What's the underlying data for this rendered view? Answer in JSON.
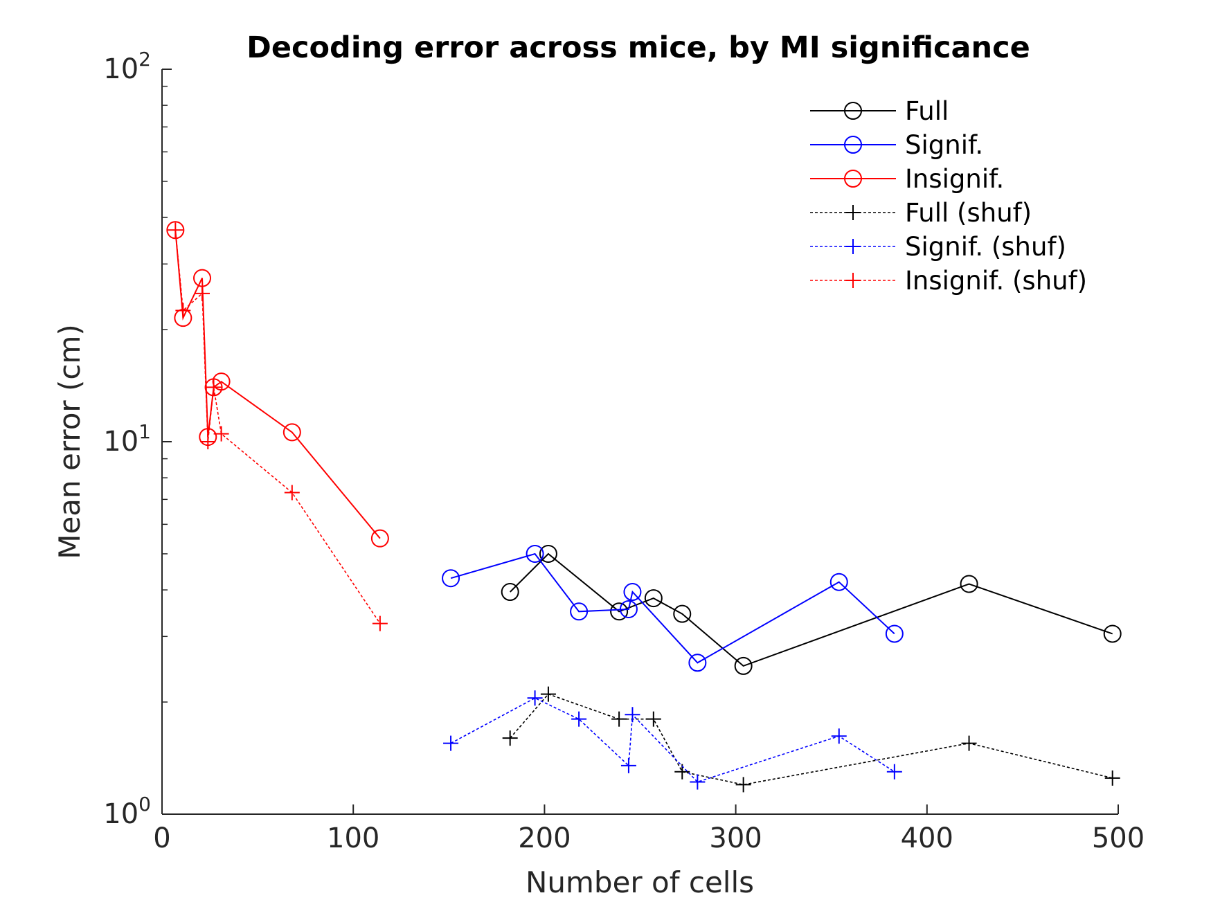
{
  "chart_data": {
    "type": "line",
    "title": "Decoding error across mice, by MI significance",
    "xlabel": "Number of cells",
    "ylabel": "Mean error (cm)",
    "xlim": [
      0,
      500
    ],
    "ylim": [
      1,
      100
    ],
    "yscale": "log",
    "grid": false,
    "legend_position": "top-right",
    "x_ticks": [
      {
        "value": 0,
        "label": "0"
      },
      {
        "value": 100,
        "label": "100"
      },
      {
        "value": 200,
        "label": "200"
      },
      {
        "value": 300,
        "label": "300"
      },
      {
        "value": 400,
        "label": "400"
      },
      {
        "value": 500,
        "label": "500"
      }
    ],
    "y_ticks": [
      {
        "value": 1,
        "base": "10",
        "exp": "0"
      },
      {
        "value": 10,
        "base": "10",
        "exp": "1"
      },
      {
        "value": 100,
        "base": "10",
        "exp": "2"
      }
    ],
    "series": [
      {
        "name": "Full",
        "color": "#000000",
        "marker": "circle",
        "line": "solid",
        "points": [
          [
            182,
            3.95
          ],
          [
            202,
            5.0
          ],
          [
            239,
            3.5
          ],
          [
            257,
            3.8
          ],
          [
            272,
            3.45
          ],
          [
            304,
            2.5
          ],
          [
            422,
            4.15
          ],
          [
            497,
            3.05
          ]
        ]
      },
      {
        "name": "Signif.",
        "color": "#0000ff",
        "marker": "circle",
        "line": "solid",
        "points": [
          [
            151,
            4.3
          ],
          [
            195,
            5.0
          ],
          [
            218,
            3.5
          ],
          [
            244,
            3.55
          ],
          [
            246,
            3.95
          ],
          [
            280,
            2.55
          ],
          [
            354,
            4.2
          ],
          [
            383,
            3.05
          ]
        ]
      },
      {
        "name": "Insignif.",
        "color": "#ff0000",
        "marker": "circle",
        "line": "solid",
        "points": [
          [
            7,
            37.0
          ],
          [
            11,
            21.5
          ],
          [
            21,
            27.5
          ],
          [
            24,
            10.3
          ],
          [
            27,
            14.0
          ],
          [
            31,
            14.5
          ],
          [
            68,
            10.6
          ],
          [
            114,
            5.5
          ]
        ]
      },
      {
        "name": "Full (shuf)",
        "color": "#000000",
        "marker": "plus",
        "line": "dashed",
        "points": [
          [
            182,
            1.6
          ],
          [
            202,
            2.1
          ],
          [
            239,
            1.8
          ],
          [
            257,
            1.8
          ],
          [
            272,
            1.3
          ],
          [
            304,
            1.2
          ],
          [
            422,
            1.55
          ],
          [
            497,
            1.25
          ]
        ]
      },
      {
        "name": "Signif. (shuf)",
        "color": "#0000ff",
        "marker": "plus",
        "line": "dashed",
        "points": [
          [
            151,
            1.55
          ],
          [
            195,
            2.05
          ],
          [
            218,
            1.8
          ],
          [
            244,
            1.35
          ],
          [
            246,
            1.85
          ],
          [
            280,
            1.22
          ],
          [
            354,
            1.62
          ],
          [
            383,
            1.3
          ]
        ]
      },
      {
        "name": "Insignif. (shuf)",
        "color": "#ff0000",
        "marker": "plus",
        "line": "dashed",
        "points": [
          [
            7,
            37.0
          ],
          [
            11,
            22.5
          ],
          [
            21,
            25.0
          ],
          [
            24,
            10.0
          ],
          [
            27,
            14.0
          ],
          [
            31,
            10.5
          ],
          [
            68,
            7.3
          ],
          [
            114,
            3.25
          ]
        ]
      }
    ]
  }
}
